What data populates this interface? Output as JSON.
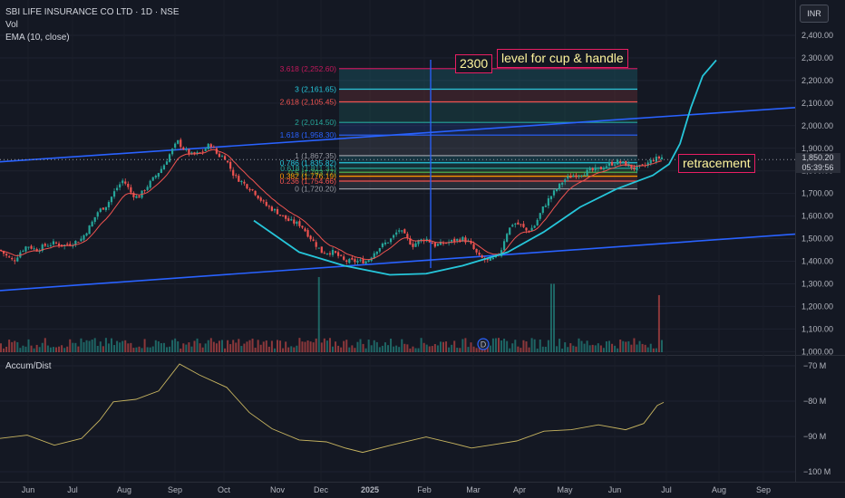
{
  "header": {
    "symbol": "SBI LIFE INSURANCE CO LTD · 1D · NSE",
    "vol_label": "Vol",
    "ema_label": "EMA (10, close)",
    "indicator_label": "Accum/Dist",
    "currency_button": "INR"
  },
  "annotations": {
    "target_value": "2300",
    "target_text": "level for cup & handle",
    "retracement_text": "retracement"
  },
  "price_tag": {
    "price": "1,850.20",
    "time": "05:39:56"
  },
  "chart_data": {
    "type": "candlestick",
    "price_axis": {
      "ticks": [
        "2,400.00",
        "2,300.00",
        "2,200.00",
        "2,100.00",
        "2,000.00",
        "1,900.00",
        "1,800.00",
        "1,700.00",
        "1,600.00",
        "1,500.00",
        "1,400.00",
        "1,300.00",
        "1,200.00",
        "1,100.00",
        "1,000.00"
      ],
      "tick_values": [
        2400,
        2300,
        2200,
        2100,
        2000,
        1900,
        1800,
        1700,
        1600,
        1500,
        1400,
        1300,
        1200,
        1100,
        1000
      ]
    },
    "indicator_axis": {
      "ticks": [
        "−70 M",
        "−80 M",
        "−90 M",
        "−100 M"
      ],
      "tick_values": [
        -70,
        -80,
        -90,
        -100
      ]
    },
    "time_axis": [
      "Jun",
      "Jul",
      "Aug",
      "Sep",
      "Oct",
      "Nov",
      "Dec",
      "2025",
      "Feb",
      "Mar",
      "Apr",
      "May",
      "Jun",
      "Jul",
      "Aug",
      "Sep"
    ],
    "price_path": [
      [
        0,
        1450
      ],
      [
        8,
        1420
      ],
      [
        15,
        1400
      ],
      [
        22,
        1440
      ],
      [
        30,
        1470
      ],
      [
        40,
        1450
      ],
      [
        50,
        1470
      ],
      [
        60,
        1480
      ],
      [
        70,
        1470
      ],
      [
        80,
        1480
      ],
      [
        90,
        1500
      ],
      [
        100,
        1560
      ],
      [
        108,
        1620
      ],
      [
        118,
        1650
      ],
      [
        128,
        1720
      ],
      [
        136,
        1760
      ],
      [
        145,
        1700
      ],
      [
        152,
        1680
      ],
      [
        160,
        1720
      ],
      [
        170,
        1770
      ],
      [
        180,
        1820
      ],
      [
        188,
        1880
      ],
      [
        196,
        1930
      ],
      [
        204,
        1890
      ],
      [
        212,
        1870
      ],
      [
        222,
        1880
      ],
      [
        232,
        1920
      ],
      [
        240,
        1870
      ],
      [
        248,
        1860
      ],
      [
        258,
        1780
      ],
      [
        270,
        1740
      ],
      [
        280,
        1710
      ],
      [
        292,
        1650
      ],
      [
        305,
        1620
      ],
      [
        318,
        1580
      ],
      [
        332,
        1560
      ],
      [
        345,
        1490
      ],
      [
        355,
        1440
      ],
      [
        368,
        1440
      ],
      [
        380,
        1400
      ],
      [
        392,
        1400
      ],
      [
        405,
        1400
      ],
      [
        415,
        1450
      ],
      [
        425,
        1480
      ],
      [
        432,
        1500
      ],
      [
        440,
        1540
      ],
      [
        447,
        1510
      ],
      [
        455,
        1470
      ],
      [
        462,
        1490
      ],
      [
        470,
        1500
      ],
      [
        480,
        1470
      ],
      [
        490,
        1480
      ],
      [
        500,
        1490
      ],
      [
        510,
        1500
      ],
      [
        518,
        1480
      ],
      [
        528,
        1420
      ],
      [
        538,
        1400
      ],
      [
        545,
        1410
      ],
      [
        552,
        1440
      ],
      [
        558,
        1520
      ],
      [
        566,
        1570
      ],
      [
        574,
        1560
      ],
      [
        582,
        1530
      ],
      [
        590,
        1560
      ],
      [
        598,
        1630
      ],
      [
        606,
        1680
      ],
      [
        614,
        1720
      ],
      [
        622,
        1760
      ],
      [
        632,
        1780
      ],
      [
        642,
        1790
      ],
      [
        652,
        1800
      ],
      [
        662,
        1810
      ],
      [
        672,
        1830
      ],
      [
        682,
        1840
      ],
      [
        690,
        1830
      ],
      [
        700,
        1810
      ],
      [
        710,
        1820
      ],
      [
        720,
        1850
      ],
      [
        730,
        1860
      ],
      [
        732,
        1855
      ]
    ],
    "volume_spikes": [
      [
        352,
        1330
      ],
      [
        609,
        1300
      ],
      [
        726,
        1250
      ]
    ],
    "accum_dist": [
      [
        0,
        -91
      ],
      [
        30,
        -90
      ],
      [
        60,
        -92
      ],
      [
        90,
        -90
      ],
      [
        110,
        -86
      ],
      [
        125,
        -80
      ],
      [
        150,
        -80
      ],
      [
        175,
        -77
      ],
      [
        198,
        -70
      ],
      [
        220,
        -72
      ],
      [
        250,
        -76
      ],
      [
        275,
        -83
      ],
      [
        300,
        -88
      ],
      [
        330,
        -91
      ],
      [
        360,
        -92
      ],
      [
        380,
        -93
      ],
      [
        400,
        -94
      ],
      [
        430,
        -92
      ],
      [
        470,
        -90
      ],
      [
        500,
        -92
      ],
      [
        520,
        -93
      ],
      [
        545,
        -92
      ],
      [
        570,
        -91
      ],
      [
        600,
        -89
      ],
      [
        630,
        -88
      ],
      [
        660,
        -87
      ],
      [
        690,
        -88
      ],
      [
        710,
        -86
      ],
      [
        725,
        -81
      ],
      [
        732,
        -80
      ]
    ],
    "fibonacci": [
      {
        "label": "3.618 (2,252.60)",
        "value": 2252.6,
        "color": "#c2185b"
      },
      {
        "label": "3 (2,161.65)",
        "value": 2161.65,
        "color": "#26c6da"
      },
      {
        "label": "2.618 (2,105.45)",
        "value": 2105.45,
        "color": "#ef5350"
      },
      {
        "label": "2 (2,014.50)",
        "value": 2014.5,
        "color": "#26a69a"
      },
      {
        "label": "1.618 (1,958.30)",
        "value": 1958.3,
        "color": "#2962ff"
      },
      {
        "label": "1 (1,867.35)",
        "value": 1867.35,
        "color": "#9598a1"
      },
      {
        "label": "0.786 (1,835.82)",
        "value": 1835.82,
        "color": "#26c6da"
      },
      {
        "label": "0.618 (1,811.31)",
        "value": 1811.31,
        "color": "#26a69a"
      },
      {
        "label": "0.5 (1,793.77)",
        "value": 1793.77,
        "color": "#4caf50"
      },
      {
        "label": "0.382 (1,776.19)",
        "value": 1776.19,
        "color": "#ff9800"
      },
      {
        "label": "0.236 (1,754.66)",
        "value": 1754.66,
        "color": "#ef5350"
      },
      {
        "label": "0 (1,720.20)",
        "value": 1720.2,
        "color": "#9598a1"
      }
    ],
    "channel_upper": [
      [
        0,
        1840
      ],
      [
        877,
        2080
      ]
    ],
    "channel_lower": [
      [
        0,
        1270
      ],
      [
        877,
        1520
      ]
    ],
    "cup_curve": [
      [
        280,
        1580
      ],
      [
        330,
        1440
      ],
      [
        380,
        1380
      ],
      [
        430,
        1340
      ],
      [
        470,
        1345
      ],
      [
        510,
        1380
      ],
      [
        560,
        1440
      ],
      [
        600,
        1530
      ],
      [
        640,
        1640
      ],
      [
        680,
        1720
      ],
      [
        720,
        1780
      ],
      [
        738,
        1830
      ],
      [
        750,
        1920
      ],
      [
        762,
        2080
      ],
      [
        775,
        2220
      ],
      [
        790,
        2290
      ]
    ],
    "colors": {
      "up": "#26a69a",
      "down": "#ef5350",
      "ema": "#ef5350",
      "accum": "#c8b560",
      "trend": "#2962ff",
      "cup": "#26c6da"
    }
  }
}
